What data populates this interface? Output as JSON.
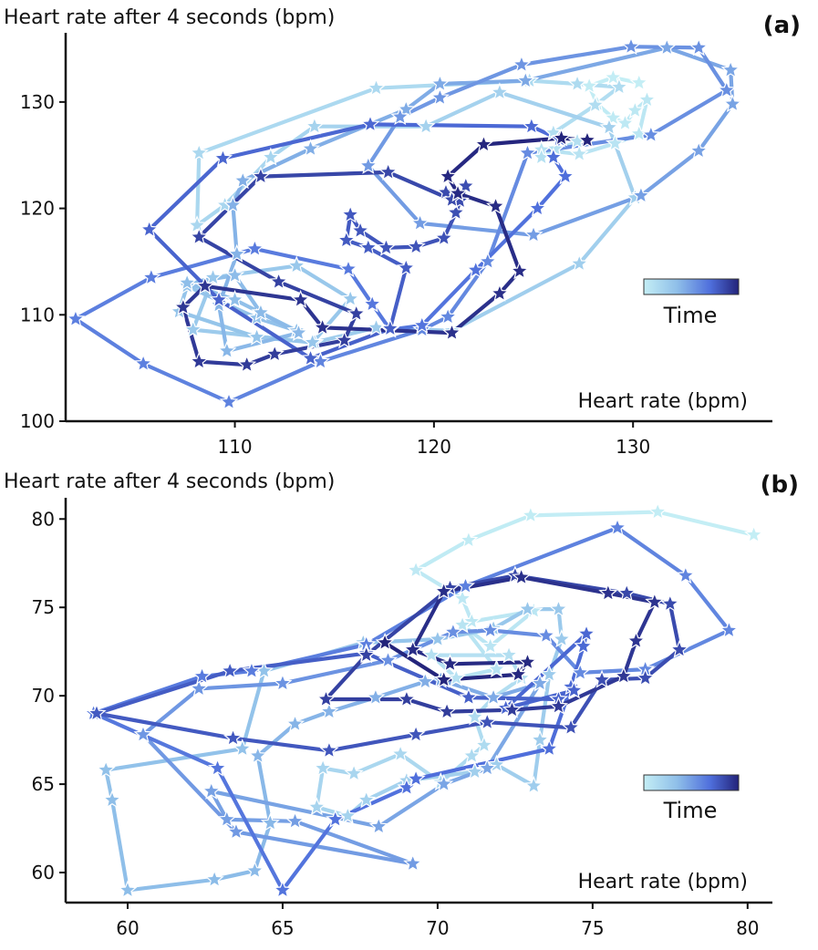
{
  "chart_data": [
    {
      "type": "line",
      "panel": "(a)",
      "ylabel": "Heart rate after 4 seconds (bpm)",
      "xlabel": "Heart rate (bpm)",
      "xlim": [
        101.5,
        137
      ],
      "ylim": [
        100,
        136.5
      ],
      "xticks": [
        110,
        120,
        130
      ],
      "yticks": [
        100,
        110,
        120,
        130
      ],
      "colorbar_label": "Time",
      "colormap": [
        "#c4eef5",
        "#8fbfe9",
        "#4f6fdc",
        "#23237a"
      ],
      "points": [
        [
          130.3,
          131.8
        ],
        [
          129.0,
          132.3
        ],
        [
          127.8,
          131.5
        ],
        [
          128.2,
          129.8
        ],
        [
          129.0,
          128.5
        ],
        [
          129.6,
          128.0
        ],
        [
          130.1,
          129.2
        ],
        [
          130.7,
          130.2
        ],
        [
          130.3,
          127.0
        ],
        [
          129.1,
          126.1
        ],
        [
          127.3,
          125.1
        ],
        [
          125.4,
          125.5
        ],
        [
          126.1,
          125.6
        ],
        [
          125.4,
          124.8
        ],
        [
          127.2,
          126.3
        ],
        [
          126.0,
          127.1
        ],
        [
          128.1,
          129.7
        ],
        [
          129.3,
          131.4
        ],
        [
          127.2,
          131.7
        ],
        [
          124.8,
          132.0
        ],
        [
          117.1,
          131.3
        ],
        [
          108.2,
          125.2
        ],
        [
          108.1,
          118.4
        ],
        [
          109.5,
          120.3
        ],
        [
          111.8,
          124.8
        ],
        [
          114.0,
          127.7
        ],
        [
          119.6,
          127.7
        ],
        [
          123.3,
          130.9
        ],
        [
          128.8,
          127.6
        ],
        [
          130.1,
          121.0
        ],
        [
          127.3,
          114.8
        ],
        [
          120.9,
          108.5
        ],
        [
          117.1,
          108.8
        ],
        [
          114.0,
          107.4
        ],
        [
          107.9,
          108.6
        ],
        [
          108.9,
          113.5
        ],
        [
          113.1,
          114.6
        ],
        [
          115.8,
          111.5
        ],
        [
          113.9,
          107.4
        ],
        [
          111.1,
          107.9
        ],
        [
          107.2,
          110.3
        ],
        [
          107.6,
          112.7
        ],
        [
          111.1,
          109.7
        ],
        [
          113.1,
          108.5
        ],
        [
          110.0,
          111.4
        ],
        [
          107.6,
          113.0
        ],
        [
          110.0,
          113.7
        ],
        [
          111.3,
          110.2
        ],
        [
          113.2,
          108.3
        ],
        [
          109.6,
          106.6
        ],
        [
          109.2,
          110.9
        ],
        [
          110.1,
          115.7
        ],
        [
          109.9,
          120.3
        ],
        [
          110.4,
          122.6
        ],
        [
          113.8,
          125.6
        ],
        [
          118.6,
          129.3
        ],
        [
          120.3,
          131.7
        ],
        [
          124.6,
          132.0
        ],
        [
          131.7,
          135.1
        ],
        [
          134.9,
          133.0
        ],
        [
          135.0,
          129.8
        ],
        [
          133.3,
          125.4
        ],
        [
          130.4,
          121.2
        ],
        [
          125.0,
          117.5
        ],
        [
          119.3,
          118.6
        ],
        [
          116.7,
          124.0
        ],
        [
          118.3,
          128.6
        ],
        [
          120.3,
          130.4
        ],
        [
          124.4,
          133.5
        ],
        [
          129.9,
          135.2
        ],
        [
          133.3,
          135.1
        ],
        [
          134.7,
          131.1
        ],
        [
          130.9,
          126.9
        ],
        [
          124.7,
          125.2
        ],
        [
          122.7,
          115.0
        ],
        [
          120.7,
          109.8
        ],
        [
          119.4,
          108.6
        ],
        [
          114.3,
          105.6
        ],
        [
          109.7,
          101.8
        ],
        [
          105.4,
          105.4
        ],
        [
          102.0,
          109.6
        ],
        [
          105.8,
          113.5
        ],
        [
          111.0,
          116.2
        ],
        [
          115.7,
          114.3
        ],
        [
          116.9,
          111.0
        ],
        [
          117.8,
          108.6
        ],
        [
          119.4,
          109.0
        ],
        [
          122.1,
          114.2
        ],
        [
          125.2,
          120.0
        ],
        [
          126.6,
          123.0
        ],
        [
          126.0,
          124.8
        ],
        [
          126.3,
          126.5
        ],
        [
          124.9,
          127.7
        ],
        [
          116.8,
          127.9
        ],
        [
          109.4,
          124.7
        ],
        [
          105.7,
          118.0
        ],
        [
          109.2,
          111.4
        ],
        [
          113.8,
          105.9
        ],
        [
          117.8,
          108.7
        ],
        [
          118.6,
          114.4
        ],
        [
          116.7,
          116.3
        ],
        [
          115.6,
          117.0
        ],
        [
          115.8,
          119.4
        ],
        [
          116.3,
          117.9
        ],
        [
          117.6,
          116.3
        ],
        [
          119.1,
          116.4
        ],
        [
          120.5,
          117.2
        ],
        [
          121.1,
          119.6
        ],
        [
          121.6,
          122.1
        ],
        [
          121.3,
          120.7
        ],
        [
          120.6,
          121.5
        ],
        [
          120.9,
          120.8
        ],
        [
          117.7,
          123.4
        ],
        [
          111.3,
          123.0
        ],
        [
          108.2,
          117.3
        ],
        [
          112.2,
          113.1
        ],
        [
          116.1,
          110.1
        ],
        [
          115.5,
          107.6
        ],
        [
          112.0,
          106.3
        ],
        [
          110.6,
          105.3
        ],
        [
          108.2,
          105.6
        ],
        [
          107.4,
          110.7
        ],
        [
          108.5,
          112.7
        ],
        [
          113.3,
          111.4
        ],
        [
          114.4,
          108.8
        ],
        [
          120.9,
          108.3
        ],
        [
          123.3,
          112.0
        ],
        [
          124.3,
          114.1
        ],
        [
          123.1,
          120.2
        ],
        [
          121.2,
          121.4
        ],
        [
          120.7,
          123.0
        ],
        [
          122.5,
          126.0
        ],
        [
          126.4,
          126.6
        ],
        [
          127.7,
          126.4
        ]
      ]
    },
    {
      "type": "line",
      "panel": "(b)",
      "ylabel": "Heart rate after 4 seconds (bpm)",
      "xlabel": "Heart rate (bpm)",
      "xlim": [
        58,
        80.8
      ],
      "ylim": [
        58.3,
        81.2
      ],
      "xticks": [
        60,
        65,
        70,
        75,
        80
      ],
      "yticks": [
        60,
        65,
        70,
        75,
        80
      ],
      "colorbar_label": "Time",
      "colormap": [
        "#c4eef5",
        "#8fbfe9",
        "#4f6fdc",
        "#23237a"
      ],
      "points": [
        [
          80.2,
          79.1
        ],
        [
          77.1,
          80.4
        ],
        [
          73.0,
          80.2
        ],
        [
          71.0,
          78.8
        ],
        [
          69.3,
          77.1
        ],
        [
          70.8,
          75.5
        ],
        [
          71.1,
          74.2
        ],
        [
          73.1,
          74.8
        ],
        [
          71.7,
          72.8
        ],
        [
          70.8,
          74.0
        ],
        [
          71.9,
          71.5
        ],
        [
          70.6,
          71.0
        ],
        [
          69.8,
          72.3
        ],
        [
          72.3,
          72.3
        ],
        [
          72.7,
          71.0
        ],
        [
          71.8,
          69.9
        ],
        [
          71.2,
          68.8
        ],
        [
          71.5,
          67.2
        ],
        [
          71.1,
          66.6
        ],
        [
          70.1,
          65.1
        ],
        [
          68.8,
          66.7
        ],
        [
          67.3,
          65.6
        ],
        [
          66.3,
          65.9
        ],
        [
          66.1,
          63.7
        ],
        [
          67.1,
          63.2
        ],
        [
          67.7,
          64.1
        ],
        [
          69.0,
          65.2
        ],
        [
          71.2,
          65.7
        ],
        [
          71.9,
          66.1
        ],
        [
          73.1,
          64.9
        ],
        [
          73.3,
          67.5
        ],
        [
          73.6,
          71.2
        ],
        [
          74.0,
          73.2
        ],
        [
          73.9,
          74.9
        ],
        [
          72.9,
          74.9
        ],
        [
          71.8,
          73.8
        ],
        [
          70.0,
          73.2
        ],
        [
          67.6,
          73.0
        ],
        [
          64.4,
          71.4
        ],
        [
          63.7,
          67.0
        ],
        [
          59.3,
          65.8
        ],
        [
          59.5,
          64.1
        ],
        [
          60.0,
          59.0
        ],
        [
          62.8,
          59.6
        ],
        [
          64.1,
          60.1
        ],
        [
          64.6,
          62.8
        ],
        [
          64.2,
          66.6
        ],
        [
          65.4,
          68.4
        ],
        [
          66.5,
          69.1
        ],
        [
          68.0,
          69.9
        ],
        [
          69.6,
          70.8
        ],
        [
          70.1,
          70.9
        ],
        [
          71.8,
          69.9
        ],
        [
          73.3,
          70.7
        ],
        [
          71.6,
          65.9
        ],
        [
          70.2,
          65.0
        ],
        [
          68.1,
          62.6
        ],
        [
          62.7,
          64.6
        ],
        [
          63.2,
          63.0
        ],
        [
          65.4,
          62.9
        ],
        [
          69.2,
          60.5
        ],
        [
          63.5,
          62.3
        ],
        [
          60.5,
          67.8
        ],
        [
          62.3,
          70.4
        ],
        [
          65.0,
          70.7
        ],
        [
          68.4,
          72.0
        ],
        [
          70.5,
          73.6
        ],
        [
          71.7,
          73.7
        ],
        [
          73.5,
          73.4
        ],
        [
          74.6,
          71.3
        ],
        [
          76.7,
          71.5
        ],
        [
          79.4,
          73.7
        ],
        [
          78.0,
          76.8
        ],
        [
          75.8,
          79.5
        ],
        [
          70.9,
          76.2
        ],
        [
          67.7,
          72.9
        ],
        [
          64.0,
          71.4
        ],
        [
          62.4,
          71.1
        ],
        [
          58.9,
          69.0
        ],
        [
          62.9,
          65.9
        ],
        [
          65.0,
          59.0
        ],
        [
          66.7,
          63.0
        ],
        [
          69.0,
          64.8
        ],
        [
          69.3,
          65.3
        ],
        [
          73.6,
          67.0
        ],
        [
          74.3,
          70.5
        ],
        [
          74.7,
          72.8
        ],
        [
          74.8,
          73.5
        ],
        [
          72.2,
          69.3
        ],
        [
          74.4,
          70.3
        ],
        [
          73.9,
          69.8
        ],
        [
          71.0,
          69.9
        ],
        [
          67.7,
          72.4
        ],
        [
          63.3,
          71.4
        ],
        [
          59.0,
          69.0
        ],
        [
          63.4,
          67.6
        ],
        [
          66.5,
          66.9
        ],
        [
          69.3,
          67.8
        ],
        [
          71.6,
          68.5
        ],
        [
          74.3,
          68.2
        ],
        [
          75.3,
          70.9
        ],
        [
          76.7,
          71.0
        ],
        [
          77.8,
          72.6
        ],
        [
          77.5,
          75.2
        ],
        [
          76.1,
          75.8
        ],
        [
          72.5,
          76.8
        ],
        [
          70.4,
          76.1
        ],
        [
          67.7,
          72.3
        ],
        [
          66.4,
          69.8
        ],
        [
          69.0,
          69.8
        ],
        [
          70.3,
          69.1
        ],
        [
          72.4,
          69.2
        ],
        [
          73.9,
          69.4
        ],
        [
          76.0,
          71.1
        ],
        [
          76.4,
          73.1
        ],
        [
          77.0,
          75.3
        ],
        [
          75.5,
          75.8
        ],
        [
          72.7,
          76.7
        ],
        [
          70.2,
          75.9
        ],
        [
          69.2,
          72.6
        ],
        [
          70.4,
          71.8
        ],
        [
          72.9,
          71.9
        ],
        [
          72.6,
          71.2
        ],
        [
          70.2,
          70.9
        ],
        [
          68.3,
          73.0
        ]
      ]
    }
  ]
}
